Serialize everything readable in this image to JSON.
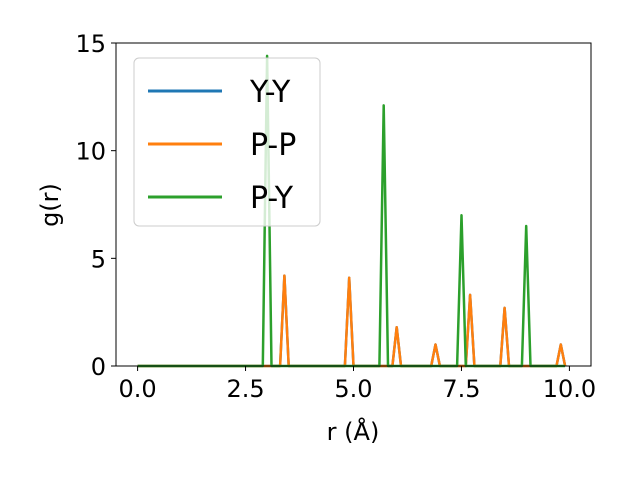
{
  "chart_data": {
    "type": "line",
    "xlabel": "r (Å)",
    "ylabel": "g(r)",
    "xlim": [
      -0.5,
      10.5
    ],
    "ylim": [
      0,
      15
    ],
    "xticks": [
      0.0,
      2.5,
      5.0,
      7.5,
      10.0
    ],
    "xtick_labels": [
      "0.0",
      "2.5",
      "5.0",
      "7.5",
      "10.0"
    ],
    "yticks": [
      0,
      5,
      10,
      15
    ],
    "ytick_labels": [
      "0",
      "5",
      "10",
      "15"
    ],
    "grid": false,
    "legend_position": "upper-left",
    "series": [
      {
        "name": "Y-Y",
        "color": "#1f77b4",
        "x": [
          0.0,
          3.3,
          3.4,
          3.5,
          4.8,
          4.9,
          5.0,
          5.9,
          6.0,
          6.1,
          6.8,
          6.9,
          7.0,
          7.6,
          7.7,
          7.8,
          8.4,
          8.5,
          8.6,
          9.7,
          9.8,
          9.9
        ],
        "y": [
          0,
          0,
          4.2,
          0,
          0,
          4.1,
          0,
          0,
          1.8,
          0,
          0,
          1.0,
          0,
          0,
          3.3,
          0,
          0,
          2.7,
          0,
          0,
          1.0,
          0
        ]
      },
      {
        "name": "P-P",
        "color": "#ff7f0e",
        "x": [
          0.0,
          3.3,
          3.4,
          3.5,
          4.8,
          4.9,
          5.0,
          5.9,
          6.0,
          6.1,
          6.8,
          6.9,
          7.0,
          7.6,
          7.7,
          7.8,
          8.4,
          8.5,
          8.6,
          9.7,
          9.8,
          9.9
        ],
        "y": [
          0,
          0,
          4.2,
          0,
          0,
          4.1,
          0,
          0,
          1.8,
          0,
          0,
          1.0,
          0,
          0,
          3.3,
          0,
          0,
          2.7,
          0,
          0,
          1.0,
          0
        ]
      },
      {
        "name": "P-Y",
        "color": "#2ca02c",
        "x": [
          0.0,
          2.9,
          3.0,
          3.1,
          5.6,
          5.7,
          5.8,
          7.4,
          7.5,
          7.6,
          8.9,
          9.0,
          9.1,
          9.9
        ],
        "y": [
          0,
          0,
          14.4,
          0,
          0,
          12.1,
          0,
          0,
          7.0,
          0,
          0,
          6.5,
          0,
          0
        ]
      }
    ]
  }
}
